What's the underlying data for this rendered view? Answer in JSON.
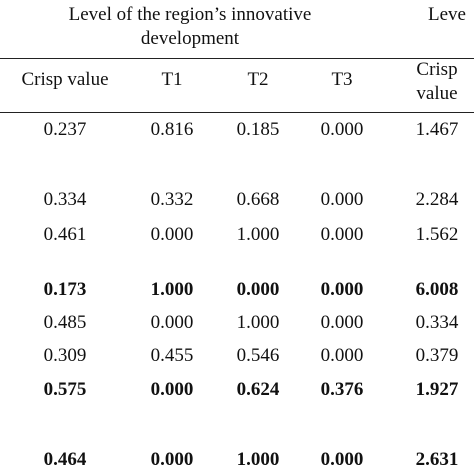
{
  "header": {
    "group_1": "Level of the region’s innovative development",
    "group_2": "Leve"
  },
  "columns": [
    "Crisp value",
    "T1",
    "T2",
    "T3",
    "Crisp value"
  ],
  "rows": [
    {
      "cells": [
        "0.237",
        "0.816",
        "0.185",
        "0.000",
        "1.467"
      ],
      "bold": false
    },
    {
      "cells": [
        "0.334",
        "0.332",
        "0.668",
        "0.000",
        "2.284"
      ],
      "bold": false
    },
    {
      "cells": [
        "0.461",
        "0.000",
        "1.000",
        "0.000",
        "1.562"
      ],
      "bold": false
    },
    {
      "cells": [
        "0.173",
        "1.000",
        "0.000",
        "0.000",
        "6.008"
      ],
      "bold": true
    },
    {
      "cells": [
        "0.485",
        "0.000",
        "1.000",
        "0.000",
        "0.334"
      ],
      "bold": false
    },
    {
      "cells": [
        "0.309",
        "0.455",
        "0.546",
        "0.000",
        "0.379"
      ],
      "bold": false
    },
    {
      "cells": [
        "0.575",
        "0.000",
        "0.624",
        "0.376",
        "1.927"
      ],
      "bold": true
    },
    {
      "cells": [
        "0.464",
        "0.000",
        "1.000",
        "0.000",
        "2.631"
      ],
      "bold": true
    }
  ]
}
